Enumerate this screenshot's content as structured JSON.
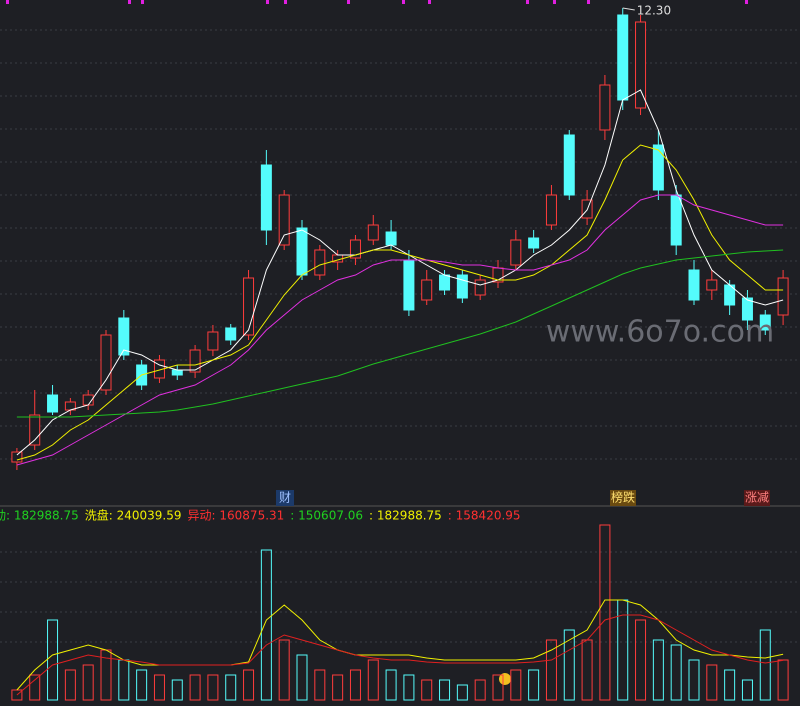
{
  "chart_data": [
    {
      "type": "candlestick",
      "open": [
        3.22,
        3.56,
        4.56,
        4.26,
        4.36,
        4.66,
        6.1,
        5.16,
        4.9,
        5.06,
        5.02,
        5.46,
        5.9,
        5.76,
        9.16,
        7.56,
        7.9,
        6.96,
        7.22,
        7.3,
        7.66,
        7.82,
        7.26,
        6.46,
        6.96,
        6.96,
        6.56,
        6.82,
        7.16,
        7.7,
        7.96,
        9.76,
        8.1,
        9.86,
        12.16,
        10.3,
        9.56,
        8.56,
        7.06,
        6.66,
        6.76,
        6.5,
        6.16,
        6.16
      ],
      "close": [
        3.42,
        4.16,
        4.22,
        4.42,
        4.56,
        5.76,
        5.36,
        4.76,
        5.26,
        4.96,
        5.46,
        5.82,
        5.66,
        6.9,
        7.86,
        8.56,
        6.96,
        7.46,
        7.36,
        7.66,
        7.96,
        7.56,
        6.26,
        6.86,
        6.66,
        6.5,
        6.86,
        7.1,
        7.66,
        7.5,
        8.56,
        8.56,
        8.46,
        10.76,
        10.46,
        12.02,
        8.66,
        7.56,
        6.46,
        6.86,
        6.36,
        6.06,
        5.86,
        6.9
      ],
      "high": [
        3.5,
        4.66,
        4.76,
        4.5,
        4.66,
        5.86,
        6.26,
        5.26,
        5.36,
        5.16,
        5.56,
        5.96,
        5.98,
        7.06,
        9.46,
        8.66,
        8.06,
        7.56,
        7.46,
        7.76,
        8.16,
        8.06,
        7.46,
        7.06,
        7.06,
        7.06,
        6.96,
        7.26,
        7.86,
        7.86,
        8.76,
        9.86,
        8.66,
        10.96,
        12.3,
        12.16,
        9.86,
        8.76,
        7.26,
        7.06,
        6.86,
        6.66,
        6.26,
        7.06
      ],
      "low": [
        3.06,
        3.46,
        4.16,
        4.16,
        4.26,
        4.56,
        5.26,
        4.66,
        4.8,
        4.86,
        4.9,
        5.34,
        5.56,
        5.66,
        7.56,
        7.46,
        6.86,
        6.86,
        7.06,
        7.16,
        7.56,
        7.46,
        6.14,
        6.36,
        6.56,
        6.4,
        6.46,
        6.7,
        7.06,
        7.4,
        7.86,
        8.46,
        7.96,
        9.66,
        10.26,
        10.16,
        8.46,
        7.36,
        6.36,
        6.46,
        6.16,
        5.86,
        5.76,
        5.96
      ],
      "up_color": "#ff3c3c",
      "down_color": "#54fcfc",
      "lines": [
        {
          "color": "#ffffff",
          "values": [
            3.36,
            3.66,
            4.06,
            4.26,
            4.36,
            4.86,
            5.46,
            5.36,
            5.16,
            5.06,
            5.06,
            5.26,
            5.46,
            5.86,
            7.06,
            7.76,
            7.86,
            7.66,
            7.36,
            7.36,
            7.46,
            7.56,
            7.36,
            7.16,
            6.96,
            6.86,
            6.76,
            6.86,
            7.06,
            7.36,
            7.56,
            7.86,
            8.26,
            9.16,
            10.46,
            10.66,
            9.86,
            8.66,
            7.76,
            7.06,
            6.76,
            6.46,
            6.36,
            6.46
          ]
        },
        {
          "color": "#f0f000",
          "values": [
            3.26,
            3.36,
            3.56,
            3.86,
            4.06,
            4.36,
            4.66,
            4.96,
            5.06,
            5.16,
            5.16,
            5.26,
            5.36,
            5.56,
            6.06,
            6.56,
            6.96,
            7.16,
            7.26,
            7.36,
            7.46,
            7.46,
            7.36,
            7.26,
            7.16,
            7.06,
            6.96,
            6.86,
            6.86,
            6.96,
            7.16,
            7.46,
            7.76,
            8.46,
            9.26,
            9.56,
            9.46,
            9.06,
            8.46,
            7.76,
            7.26,
            6.96,
            6.66,
            6.66
          ]
        },
        {
          "color": "#e030e0",
          "values": [
            3.16,
            3.26,
            3.36,
            3.56,
            3.76,
            3.96,
            4.16,
            4.36,
            4.56,
            4.66,
            4.76,
            4.96,
            5.16,
            5.46,
            5.86,
            6.16,
            6.46,
            6.66,
            6.86,
            6.96,
            7.16,
            7.26,
            7.26,
            7.26,
            7.22,
            7.16,
            7.16,
            7.1,
            7.06,
            7.06,
            7.16,
            7.26,
            7.46,
            7.86,
            8.16,
            8.46,
            8.56,
            8.56,
            8.36,
            8.26,
            8.16,
            8.06,
            7.96,
            7.96
          ]
        },
        {
          "color": "#20c020",
          "values": [
            4.12,
            4.12,
            4.12,
            4.12,
            4.14,
            4.16,
            4.18,
            4.2,
            4.22,
            4.26,
            4.32,
            4.38,
            4.46,
            4.54,
            4.62,
            4.7,
            4.78,
            4.86,
            4.94,
            5.06,
            5.18,
            5.28,
            5.38,
            5.48,
            5.58,
            5.68,
            5.78,
            5.9,
            6.02,
            6.18,
            6.34,
            6.5,
            6.66,
            6.82,
            6.98,
            7.1,
            7.18,
            7.26,
            7.3,
            7.34,
            7.38,
            7.42,
            7.44,
            7.46
          ]
        }
      ],
      "ylim": [
        2.36,
        12.46
      ],
      "peak_label": "12.30",
      "events": [
        "财",
        "榜跌",
        "涨减"
      ],
      "watermark": "www.6o7o.com"
    },
    {
      "type": "bar",
      "values": [
        40000,
        100000,
        320000,
        120000,
        140000,
        200000,
        160000,
        120000,
        100000,
        80000,
        100000,
        100000,
        100000,
        120000,
        600000,
        240000,
        180000,
        120000,
        100000,
        120000,
        160000,
        120000,
        100000,
        80000,
        80000,
        60000,
        80000,
        100000,
        120000,
        120000,
        240000,
        280000,
        240000,
        700000,
        400000,
        320000,
        240000,
        220000,
        160000,
        140000,
        120000,
        80000,
        280000,
        160000
      ],
      "lines": [
        {
          "color": "#f0f000",
          "values": [
            40000,
            120000,
            180000,
            200000,
            220000,
            200000,
            160000,
            140000,
            140000,
            140000,
            140000,
            140000,
            140000,
            152000,
            320000,
            380000,
            320000,
            240000,
            200000,
            180000,
            180000,
            180000,
            180000,
            168000,
            160000,
            160000,
            160000,
            160000,
            160000,
            168000,
            200000,
            240000,
            280000,
            400000,
            400000,
            380000,
            320000,
            240000,
            200000,
            180000,
            180000,
            172000,
            168000,
            182988.75
          ]
        },
        {
          "color": "#e02020",
          "values": [
            20000,
            80000,
            140000,
            160000,
            180000,
            168000,
            160000,
            152000,
            140000,
            140000,
            140000,
            140000,
            140000,
            148000,
            220000,
            260000,
            240000,
            220000,
            200000,
            180000,
            168000,
            160000,
            160000,
            152000,
            148000,
            148000,
            148000,
            148000,
            148000,
            152000,
            160000,
            200000,
            240000,
            320000,
            340000,
            340000,
            320000,
            280000,
            240000,
            200000,
            180000,
            160000,
            148000,
            158420.95
          ]
        }
      ],
      "ylim": [
        0,
        700000
      ],
      "legend": [
        {
          "text": "动: 182988.75",
          "color": "#20d020"
        },
        {
          "text": "洗盘: 240039.59",
          "color": "#f0f000"
        },
        {
          "text": "异动: 160875.31",
          "color": "#ff3030"
        },
        {
          "text": ": 150607.06",
          "color": "#20d020"
        },
        {
          "text": ": 182988.75",
          "color": "#f0f000"
        },
        {
          "text": ": 158420.95",
          "color": "#ff3030"
        }
      ]
    }
  ]
}
